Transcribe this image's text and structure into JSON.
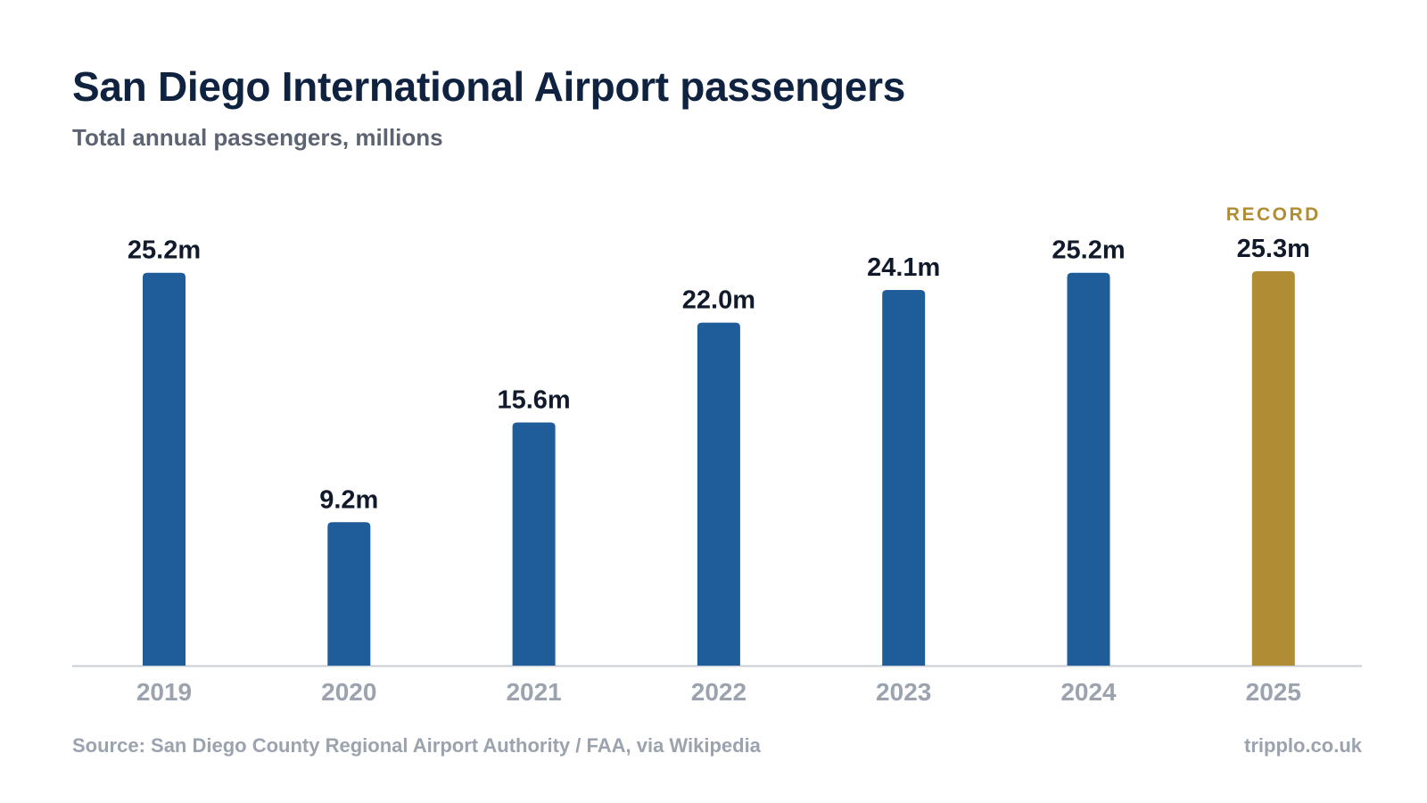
{
  "title": "San Diego International Airport passengers",
  "subtitle": "Total annual passengers, millions",
  "source": "Source: San Diego County Regional Airport Authority / FAA, via Wikipedia",
  "brand": "tripplo.co.uk",
  "colors": {
    "bar": "#1f5c9a",
    "highlight": "#b08d35",
    "axis": "#c9ced6"
  },
  "chart_data": {
    "type": "bar",
    "title": "San Diego International Airport passengers",
    "subtitle": "Total annual passengers, millions",
    "xlabel": "",
    "ylabel": "",
    "ylim": [
      0,
      25.3
    ],
    "grid": false,
    "categories": [
      "2019",
      "2020",
      "2021",
      "2022",
      "2023",
      "2024",
      "2025"
    ],
    "values": [
      25.2,
      9.2,
      15.6,
      22.0,
      24.1,
      25.2,
      25.3
    ],
    "labels": [
      "25.2m",
      "9.2m",
      "15.6m",
      "22.0m",
      "24.1m",
      "25.2m",
      "25.3m"
    ],
    "highlight": {
      "category": "2025",
      "annotation": "RECORD"
    }
  }
}
